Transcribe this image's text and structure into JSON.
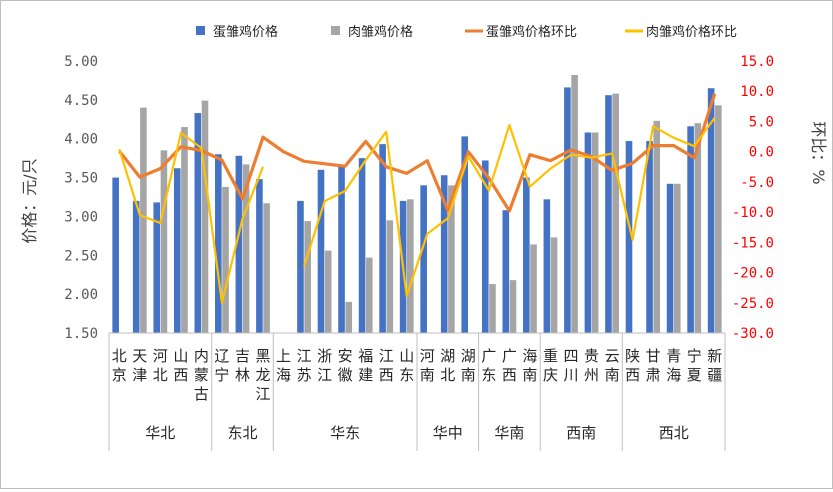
{
  "chart_data": {
    "type": "bar",
    "legend_position": "top",
    "grid": false,
    "y_axis": {
      "label": "价格：元/只",
      "ylim": [
        1.5,
        5.0
      ],
      "ticks": [
        "1.50",
        "2.00",
        "2.50",
        "3.00",
        "3.50",
        "4.00",
        "4.50",
        "5.00"
      ]
    },
    "y2_axis": {
      "label": "环比：%",
      "ylim": [
        -30,
        15
      ],
      "ticks": [
        "-30.0",
        "-25.0",
        "-20.0",
        "-15.0",
        "-10.0",
        "-5.0",
        "0.0",
        "5.0",
        "10.0",
        "15.0"
      ],
      "color": "#ff0000"
    },
    "categories": [
      "北京",
      "天津",
      "河北",
      "山西",
      "内蒙古",
      "辽宁",
      "吉林",
      "黑龙江",
      "上海",
      "江苏",
      "浙江",
      "安徽",
      "福建",
      "江西",
      "山东",
      "河南",
      "湖北",
      "湖南",
      "广东",
      "广西",
      "海南",
      "重庆",
      "四川",
      "贵州",
      "云南",
      "陕西",
      "甘肃",
      "青海",
      "宁夏",
      "新疆"
    ],
    "regions": [
      {
        "name": "华北",
        "count": 5
      },
      {
        "name": "东北",
        "count": 3
      },
      {
        "name": "华东",
        "count": 7
      },
      {
        "name": "华中",
        "count": 3
      },
      {
        "name": "华南",
        "count": 3
      },
      {
        "name": "西南",
        "count": 4
      },
      {
        "name": "西北",
        "count": 5
      }
    ],
    "series": [
      {
        "name": "蛋雏鸡价格",
        "type": "bar",
        "axis": "left",
        "color": "#4472c4",
        "values": [
          3.5,
          3.2,
          3.18,
          3.62,
          4.33,
          3.8,
          3.78,
          3.48,
          null,
          3.2,
          3.6,
          3.65,
          3.75,
          3.93,
          3.2,
          3.4,
          3.53,
          4.03,
          3.72,
          3.08,
          3.5,
          3.22,
          4.66,
          4.08,
          4.56,
          3.97,
          3.97,
          3.42,
          4.16,
          4.65
        ]
      },
      {
        "name": "肉雏鸡价格",
        "type": "bar",
        "axis": "left",
        "color": "#a5a5a5",
        "values": [
          null,
          4.4,
          3.85,
          4.15,
          4.49,
          3.38,
          3.67,
          3.17,
          null,
          2.94,
          2.56,
          1.9,
          2.47,
          2.95,
          3.22,
          null,
          3.4,
          null,
          2.13,
          2.18,
          2.64,
          2.73,
          4.82,
          4.08,
          4.58,
          null,
          4.23,
          3.42,
          4.2,
          4.43
        ]
      },
      {
        "name": "蛋雏鸡价格环比",
        "type": "line",
        "axis": "right",
        "color": "#ed7d31",
        "values": [
          0.1,
          -4.2,
          -2.8,
          0.8,
          0.2,
          -1.4,
          -7.8,
          2.4,
          0.0,
          -1.6,
          -2.0,
          -2.4,
          1.7,
          -2.5,
          -3.6,
          -1.5,
          -9.7,
          0.0,
          -4.4,
          -9.8,
          -0.5,
          -1.5,
          0.3,
          -0.8,
          -3.1,
          -1.9,
          1.0,
          1.0,
          -1.0,
          9.6
        ]
      },
      {
        "name": "肉雏鸡价格环比",
        "type": "line",
        "axis": "right",
        "color": "#ffc000",
        "values": [
          0.4,
          -10.5,
          -11.8,
          3.1,
          0.6,
          -25.0,
          -11.1,
          -2.5,
          null,
          -19.0,
          -8.2,
          -6.5,
          -1.4,
          3.3,
          -23.9,
          -13.6,
          -11.0,
          -0.8,
          -6.4,
          4.4,
          -5.8,
          -2.8,
          -0.5,
          -1.0,
          -0.3,
          -14.6,
          4.2,
          2.3,
          0.9,
          5.6
        ]
      }
    ],
    "labels": {
      "ylabel_chars": [
        "价",
        "格",
        "：",
        "元",
        "/",
        "只"
      ],
      "y2label_chars": [
        "环",
        "比",
        "：",
        "%"
      ],
      "category_lines": [
        [
          "北",
          "京"
        ],
        [
          "天",
          "津"
        ],
        [
          "河",
          "北"
        ],
        [
          "山",
          "西"
        ],
        [
          "内",
          "蒙",
          "古"
        ],
        [
          "辽",
          "宁"
        ],
        [
          "吉",
          "林"
        ],
        [
          "黑",
          "龙",
          "江"
        ],
        [
          "上",
          "海"
        ],
        [
          "江",
          "苏"
        ],
        [
          "浙",
          "江"
        ],
        [
          "安",
          "徽"
        ],
        [
          "福",
          "建"
        ],
        [
          "江",
          "西"
        ],
        [
          "山",
          "东"
        ],
        [
          "河",
          "南"
        ],
        [
          "湖",
          "北"
        ],
        [
          "湖",
          "南"
        ],
        [
          "广",
          "东"
        ],
        [
          "广",
          "西"
        ],
        [
          "海",
          "南"
        ],
        [
          "重",
          "庆"
        ],
        [
          "四",
          "川"
        ],
        [
          "贵",
          "州"
        ],
        [
          "云",
          "南"
        ],
        [
          "陕",
          "西"
        ],
        [
          "甘",
          "肃"
        ],
        [
          "青",
          "海"
        ],
        [
          "宁",
          "夏"
        ],
        [
          "新",
          "疆"
        ]
      ]
    }
  }
}
